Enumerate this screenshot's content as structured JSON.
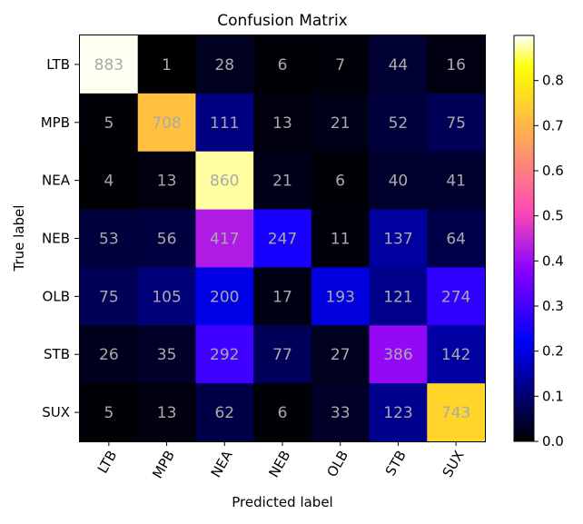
{
  "chart_data": {
    "type": "heatmap",
    "title": "Confusion Matrix",
    "xlabel": "Predicted label",
    "ylabel": "True label",
    "x_categories": [
      "LTB",
      "MPB",
      "NEA",
      "NEB",
      "OLB",
      "STB",
      "SUX"
    ],
    "y_categories": [
      "LTB",
      "MPB",
      "NEA",
      "NEB",
      "OLB",
      "STB",
      "SUX"
    ],
    "counts": [
      [
        883,
        1,
        28,
        6,
        7,
        44,
        16
      ],
      [
        5,
        708,
        111,
        13,
        21,
        52,
        75
      ],
      [
        4,
        13,
        860,
        21,
        6,
        40,
        41
      ],
      [
        53,
        56,
        417,
        247,
        11,
        137,
        64
      ],
      [
        75,
        105,
        200,
        17,
        193,
        121,
        274
      ],
      [
        26,
        35,
        292,
        77,
        27,
        386,
        142
      ],
      [
        5,
        13,
        62,
        6,
        33,
        123,
        743
      ]
    ],
    "colormap": "gnuplot2",
    "cell_text_color": "#aaaaaa",
    "colorbar": {
      "range": [
        0.0,
        0.9
      ],
      "ticks": [
        "0.0",
        "0.1",
        "0.2",
        "0.3",
        "0.4",
        "0.5",
        "0.6",
        "0.7",
        "0.8"
      ]
    },
    "x_tick_rotation": "rotated"
  }
}
